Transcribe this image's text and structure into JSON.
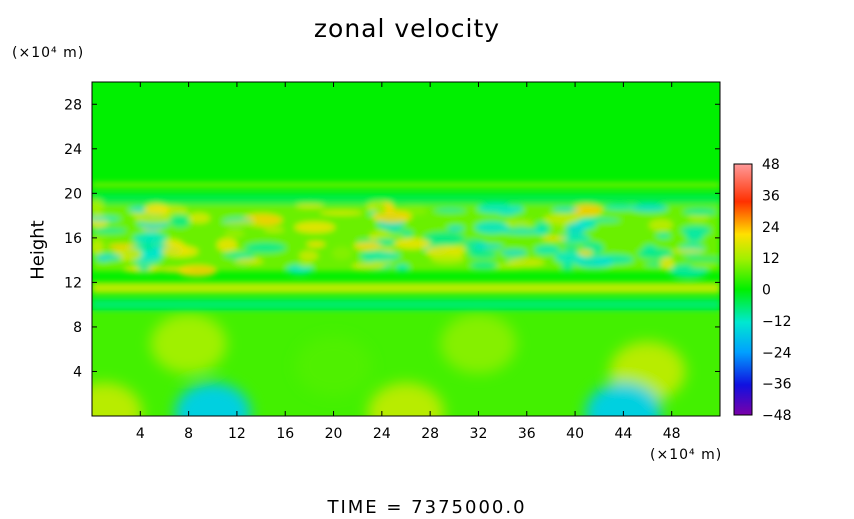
{
  "chart_data": {
    "type": "heatmap",
    "title": "zonal velocity",
    "ylabel": "Height",
    "xlabel": "",
    "x_unit": "(×10⁴ m)",
    "y_unit": "(×10⁴ m)",
    "xlim": [
      0,
      52
    ],
    "ylim": [
      0,
      30
    ],
    "x_ticks": [
      "4",
      "8",
      "12",
      "16",
      "20",
      "24",
      "28",
      "32",
      "36",
      "40",
      "44",
      "48"
    ],
    "x_tick_values": [
      4,
      8,
      12,
      16,
      20,
      24,
      28,
      32,
      36,
      40,
      44,
      48
    ],
    "y_ticks": [
      "4",
      "8",
      "12",
      "16",
      "20",
      "24",
      "28"
    ],
    "y_tick_values": [
      4,
      8,
      12,
      16,
      20,
      24,
      28
    ],
    "colorbar": {
      "ticks": [
        "48",
        "36",
        "24",
        "12",
        "0",
        "−12",
        "−24",
        "−36",
        "−48"
      ],
      "tick_values": [
        48,
        36,
        24,
        12,
        0,
        -12,
        -24,
        -36,
        -48
      ],
      "range": [
        -48,
        48
      ]
    },
    "field_description": {
      "upper_layer_velocity": 0,
      "layers": [
        {
          "y_range": [
            20.5,
            21
          ],
          "value": 8
        },
        {
          "y_range": [
            19,
            20
          ],
          "value": -4
        },
        {
          "y_range": [
            13,
            19
          ],
          "value": 8
        },
        {
          "y_range": [
            11,
            12
          ],
          "value": 14
        },
        {
          "y_range": [
            9.5,
            10.5
          ],
          "value": -6
        }
      ],
      "lower_anomalies": [
        {
          "x": 8,
          "y": 6.5,
          "value": 12
        },
        {
          "x": 20,
          "y": 4.5,
          "value": 6
        },
        {
          "x": 32,
          "y": 6.5,
          "value": 10
        },
        {
          "x": 46,
          "y": 4,
          "value": 14
        },
        {
          "x": 10,
          "y": 0.3,
          "value": -16
        },
        {
          "x": 44,
          "y": 0.3,
          "value": -16
        },
        {
          "x": 26,
          "y": 0.3,
          "value": 14
        },
        {
          "x": 1,
          "y": 0.3,
          "value": 14
        }
      ]
    }
  },
  "footer": {
    "time_label": "TIME = 7375000.0"
  }
}
